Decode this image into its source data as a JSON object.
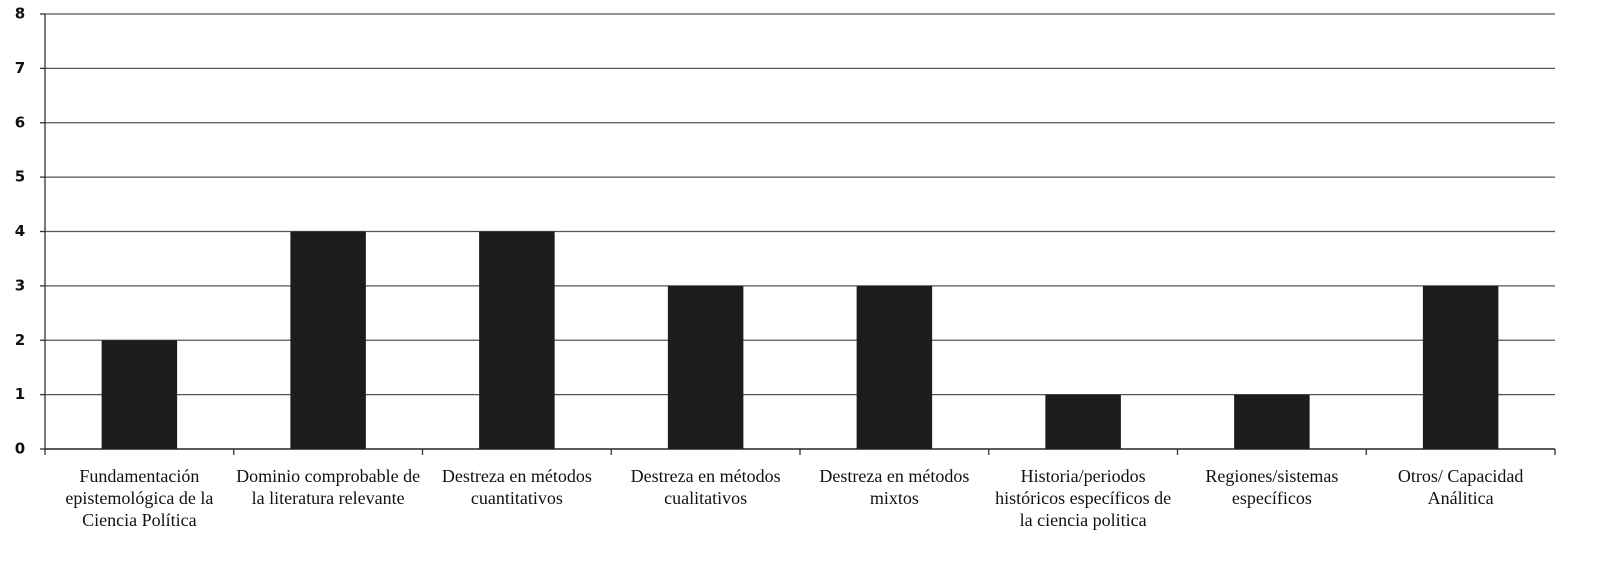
{
  "chart_data": {
    "type": "bar",
    "categories": [
      "Fundamentación epistemológica de la Ciencia Política",
      "Dominio comprobable de la literatura relevante",
      "Destreza en métodos cuantitativos",
      "Destreza en métodos cualitativos",
      "Destreza en métodos mixtos",
      "Historia/periodos históricos específicos de la ciencia politica",
      "Regiones/sistemas específicos",
      "Otros/ Capacidad Análitica"
    ],
    "values": [
      2,
      4,
      4,
      3,
      3,
      1,
      1,
      3
    ],
    "color": "#1c1c1c",
    "ylim": [
      0,
      8
    ],
    "yticks": [
      0,
      1,
      2,
      3,
      4,
      5,
      6,
      7,
      8
    ],
    "grid": true
  }
}
